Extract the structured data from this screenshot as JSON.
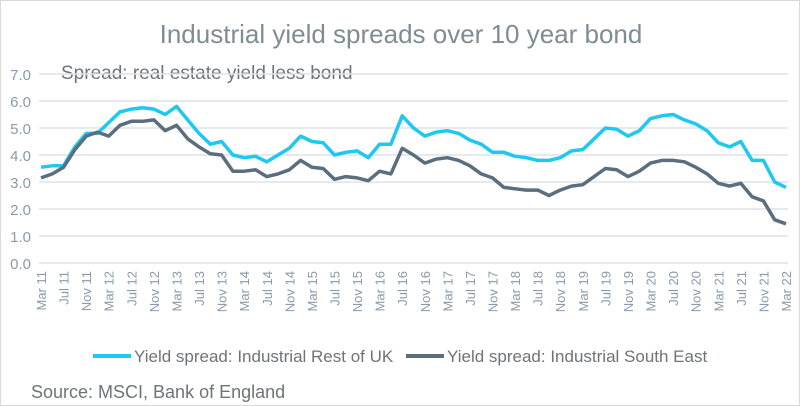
{
  "chart_data": {
    "type": "line",
    "title": "Industrial yield spreads over 10 year bond",
    "subtitle": "Spread: real estate yield less bond",
    "source": "Source: MSCI, Bank of England",
    "ylim": [
      0,
      7
    ],
    "yticks": [
      "0.0",
      "1.0",
      "2.0",
      "3.0",
      "4.0",
      "5.0",
      "6.0",
      "7.0"
    ],
    "grid": true,
    "legend_position": "bottom",
    "x_step": "2 months, Mar 11 to Mar 22",
    "xtick_labels": [
      "Mar 11",
      "Jul 11",
      "Nov 11",
      "Mar 12",
      "Jul 12",
      "Nov 12",
      "Mar 13",
      "Jul 13",
      "Nov 13",
      "Mar 14",
      "Jul 14",
      "Nov 14",
      "Mar 15",
      "Jul 15",
      "Nov 15",
      "Mar 16",
      "Jul 16",
      "Nov 16",
      "Mar 17",
      "Jul 17",
      "Nov 17",
      "Mar 18",
      "Jul 18",
      "Nov 18",
      "Mar 19",
      "Jul 19",
      "Nov 19",
      "Mar 20",
      "Jul 20",
      "Nov 20",
      "Mar 21",
      "Jul 21",
      "Nov 21",
      "Mar 22"
    ],
    "series": [
      {
        "name": "Yield spread: Industrial Rest of UK",
        "color": "#1ec8f0",
        "values": [
          3.55,
          3.6,
          3.6,
          4.3,
          4.8,
          4.8,
          5.2,
          5.6,
          5.7,
          5.75,
          5.7,
          5.5,
          5.8,
          5.3,
          4.8,
          4.4,
          4.5,
          4.0,
          3.9,
          3.95,
          3.75,
          4.0,
          4.25,
          4.7,
          4.5,
          4.45,
          4.0,
          4.1,
          4.15,
          3.9,
          4.4,
          4.4,
          5.45,
          5.0,
          4.7,
          4.85,
          4.9,
          4.8,
          4.55,
          4.4,
          4.1,
          4.1,
          3.95,
          3.9,
          3.8,
          3.8,
          3.9,
          4.15,
          4.2,
          4.6,
          5.0,
          4.95,
          4.7,
          4.9,
          5.35,
          5.45,
          5.5,
          5.3,
          5.15,
          4.9,
          4.45,
          4.3,
          4.5,
          3.8,
          3.8,
          3.0,
          2.8
        ]
      },
      {
        "name": "Yield spread: Industrial South East",
        "color": "#5a6e7e",
        "values": [
          3.15,
          3.3,
          3.55,
          4.2,
          4.7,
          4.85,
          4.7,
          5.1,
          5.25,
          5.25,
          5.3,
          4.9,
          5.1,
          4.6,
          4.3,
          4.05,
          4.0,
          3.4,
          3.4,
          3.45,
          3.2,
          3.3,
          3.45,
          3.8,
          3.55,
          3.5,
          3.1,
          3.2,
          3.15,
          3.05,
          3.4,
          3.3,
          4.25,
          4.0,
          3.7,
          3.85,
          3.9,
          3.8,
          3.6,
          3.3,
          3.15,
          2.8,
          2.75,
          2.7,
          2.7,
          2.5,
          2.7,
          2.85,
          2.9,
          3.2,
          3.5,
          3.45,
          3.2,
          3.4,
          3.7,
          3.8,
          3.8,
          3.75,
          3.55,
          3.3,
          2.95,
          2.85,
          2.95,
          2.45,
          2.3,
          1.6,
          1.45
        ]
      }
    ]
  }
}
